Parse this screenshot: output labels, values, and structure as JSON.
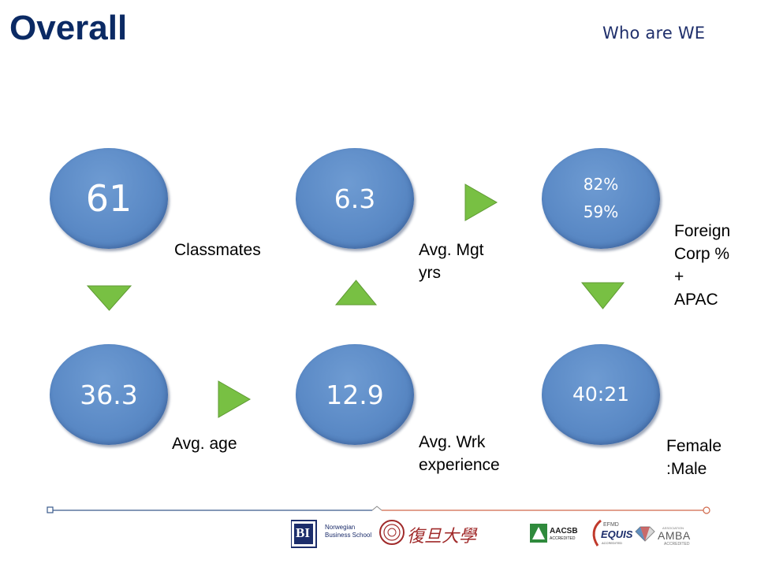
{
  "header": {
    "title": "Overall",
    "subtitle": "Who are WE"
  },
  "stats": [
    {
      "value": "61",
      "label": "Classmates"
    },
    {
      "value": "6.3",
      "label_line1": "Avg. Mgt",
      "label_line2": "yrs"
    },
    {
      "value_line1": "82%",
      "value_line2": "59%",
      "label_line1": "Foreign",
      "label_line2": "Corp %",
      "label_line3": "+",
      "label_line4": "APAC"
    },
    {
      "value": "36.3",
      "label": "Avg. age"
    },
    {
      "value": "12.9",
      "label_line1": "Avg. Wrk",
      "label_line2": "experience"
    },
    {
      "value": "40:21",
      "label_line1": "Female",
      "label_line2": ":Male"
    }
  ],
  "colors": {
    "circle": "#5b8ac6",
    "arrow": "#78c043",
    "title": "#0b2a64",
    "footer_left_line": "#3a5a8c",
    "footer_right_line": "#d0684a"
  },
  "logos": {
    "bi_mark": "BI",
    "bi_name_line1": "Norwegian",
    "bi_name_line2": "Business School",
    "fudan_chinese": "復旦大學",
    "aacsb_line1": "AACSB",
    "aacsb_line2": "ACCREDITED",
    "efmd": "EFMD",
    "equis": "EQUIS",
    "equis_sub": "ACCREDITED",
    "amba_top": "ASSOCIATION",
    "amba": "AMBA",
    "amba_sub": "ACCREDITED"
  }
}
